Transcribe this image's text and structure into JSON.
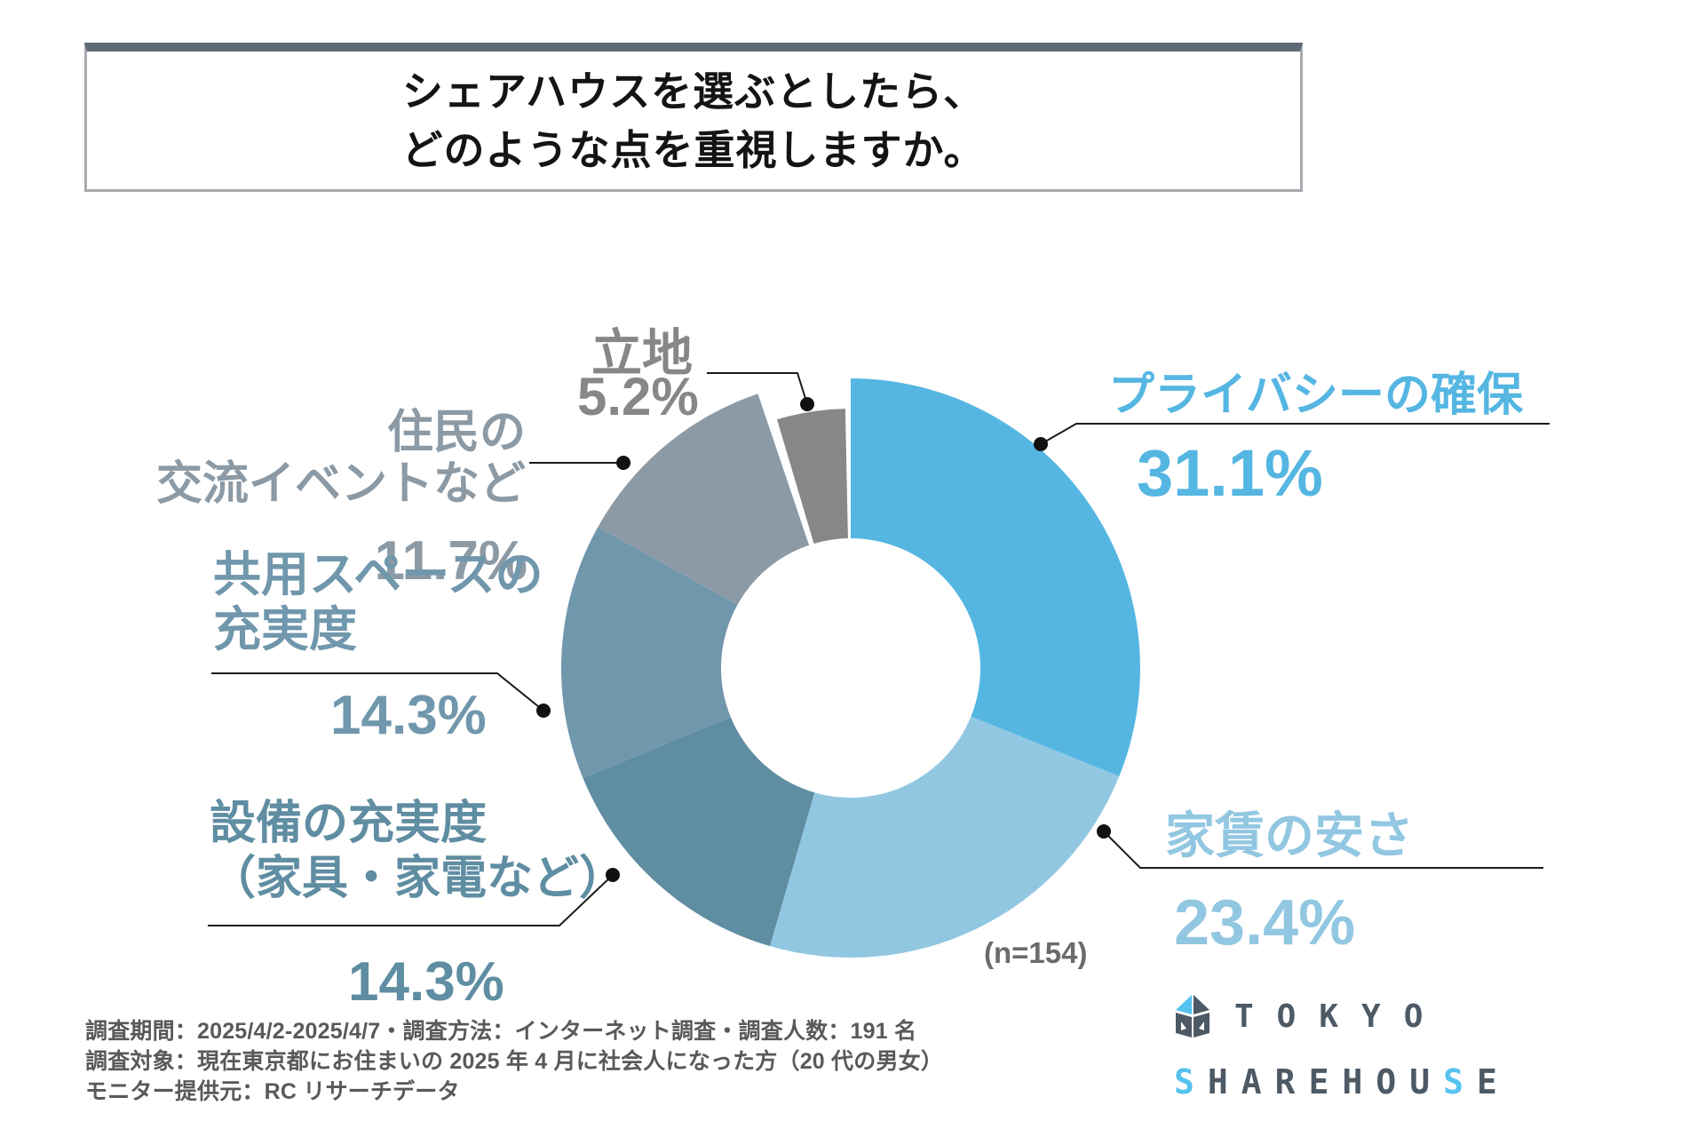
{
  "title": {
    "line1": "シェアハウスを選ぶとしたら、",
    "line2": "どのような点を重視しますか。"
  },
  "chart_data": {
    "type": "pie",
    "subtype": "donut",
    "title": "シェアハウスを選ぶとしたら、どのような点を重視しますか。",
    "sample_note": "(n=154)",
    "categories": [
      "プライバシーの確保",
      "家賃の安さ",
      "設備の充実度（家具・家電など）",
      "共用スペースの充実度",
      "住民の交流イベントなど",
      "立地"
    ],
    "values": [
      31.1,
      23.4,
      14.3,
      14.3,
      11.7,
      5.2
    ],
    "colors": [
      "#55B6E2",
      "#92C7E2",
      "#5F8DA2",
      "#7097AC",
      "#8C9AA5",
      "#878787"
    ],
    "start_angle": "12 o'clock, clockwise",
    "legend_position": "callout-labels",
    "exploded_slice": "立地"
  },
  "callouts": {
    "privacy": {
      "name": "プライバシーの確保",
      "pct": "31.1%"
    },
    "rent": {
      "name": "家賃の安さ",
      "pct": "23.4%"
    },
    "equip": {
      "line1": "設備の充実度",
      "line2": "（家具・家電など）",
      "pct": "14.3%"
    },
    "common": {
      "line1": "共用スペースの",
      "line2": "充実度",
      "pct": "14.3%"
    },
    "residents": {
      "line1": "住民の",
      "line2": "交流イベントなど",
      "pct": "11.7%"
    },
    "location": {
      "name": "立地",
      "pct": "5.2%"
    }
  },
  "footer": {
    "line1": "調査期間：2025/4/2-2025/4/7・調査方法：インターネット調査・調査人数：191 名",
    "line2": "調査対象：現在東京都にお住まいの 2025 年 4 月に社会人になった方（20 代の男女）",
    "line3": "モニター提供元：RC リサーチデータ"
  },
  "logo": {
    "tokyo": "TOKYO",
    "sharehouse": "SHAREHOUSE",
    "blue_letter_indices": [
      0,
      8
    ],
    "dark_color": "#4d5965",
    "accent_color": "#56c2f0"
  }
}
